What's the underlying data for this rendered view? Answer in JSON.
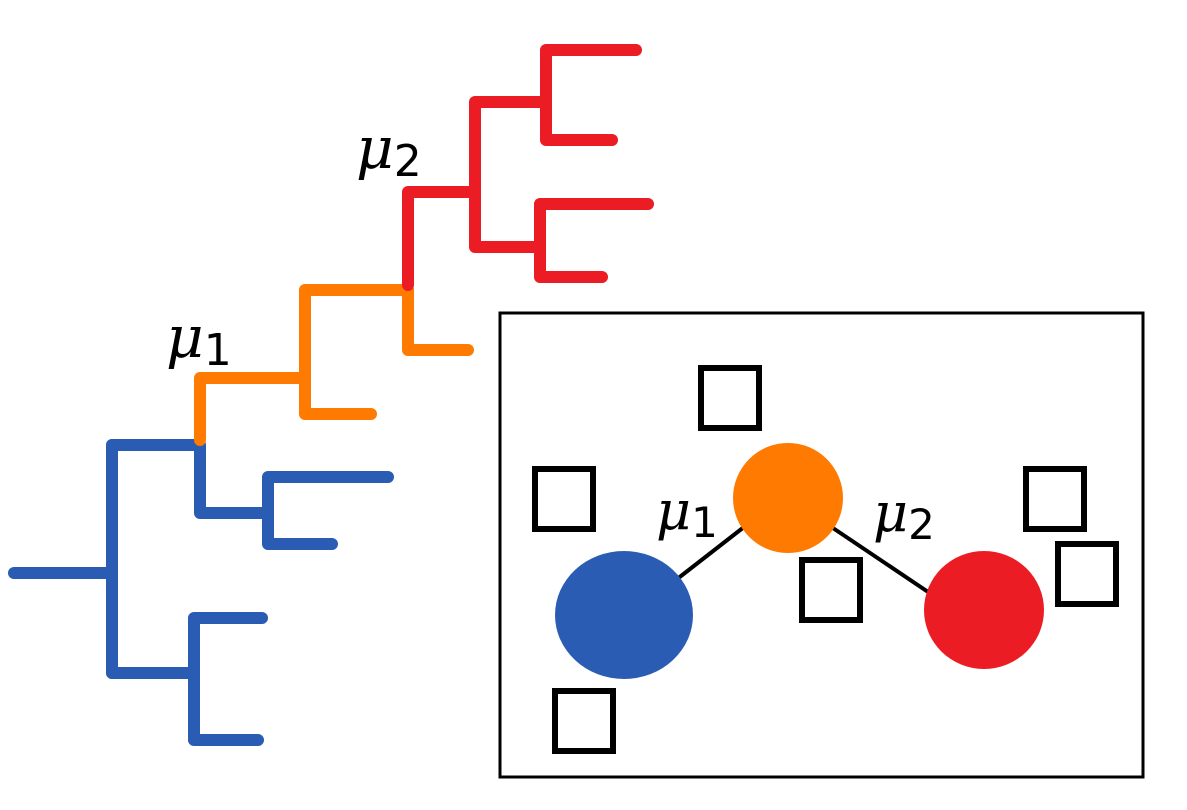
{
  "colors": {
    "blue": "#2b5cb3",
    "orange": "#ff7a00",
    "red": "#ec1c24",
    "black": "#000000"
  },
  "tree": {
    "mutation_1": {
      "symbol": "μ",
      "subscript": "1"
    },
    "mutation_2": {
      "symbol": "μ",
      "subscript": "2"
    }
  },
  "inset": {
    "clone_graph": {
      "mutation_1": {
        "symbol": "μ",
        "subscript": "1"
      },
      "mutation_2": {
        "symbol": "μ",
        "subscript": "2"
      }
    }
  }
}
